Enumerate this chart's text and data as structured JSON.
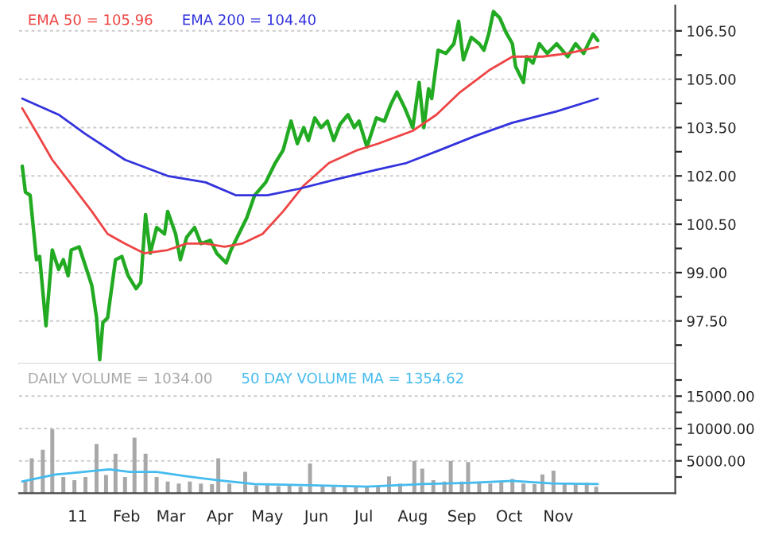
{
  "chart_data": [
    {
      "type": "line",
      "legend": "top left",
      "grid": "y",
      "tick_labels": "y",
      "xlim": [
        "2010-11-25",
        "2012-01-14"
      ],
      "ylim": [
        96.17,
        107.29
      ],
      "yticks": [
        {
          "value": 96.75,
          "label": null
        },
        {
          "value": 97.5,
          "label": "97.50"
        },
        {
          "value": 98.25,
          "label": null
        },
        {
          "value": 99.0,
          "label": "99.00"
        },
        {
          "value": 99.75,
          "label": null
        },
        {
          "value": 100.5,
          "label": "100.50"
        },
        {
          "value": 101.25,
          "label": null
        },
        {
          "value": 102.0,
          "label": "102.00"
        },
        {
          "value": 102.75,
          "label": null
        },
        {
          "value": 103.5,
          "label": "103.50"
        },
        {
          "value": 104.25,
          "label": null
        },
        {
          "value": 105.0,
          "label": "105.00"
        },
        {
          "value": 105.75,
          "label": null
        },
        {
          "value": 106.5,
          "label": "106.50"
        }
      ],
      "series": [
        {
          "color": "#22aa22",
          "x": [
            "2010-11-27",
            "2010-11-29",
            "2010-12-02",
            "2010-12-06",
            "2010-12-08",
            "2010-12-12",
            "2010-12-16",
            "2010-12-20",
            "2010-12-23",
            "2010-12-26",
            "2010-12-28",
            "2011-01-02",
            "2011-01-06",
            "2011-01-10",
            "2011-01-13",
            "2011-01-15",
            "2011-01-17",
            "2011-01-20",
            "2011-01-25",
            "2011-01-29",
            "2011-02-02",
            "2011-02-07",
            "2011-02-10",
            "2011-02-13",
            "2011-02-16",
            "2011-02-20",
            "2011-02-25",
            "2011-02-27",
            "2011-03-04",
            "2011-03-07",
            "2011-03-11",
            "2011-03-16",
            "2011-03-20",
            "2011-03-26",
            "2011-03-30",
            "2011-04-05",
            "2011-04-08",
            "2011-04-13",
            "2011-04-18",
            "2011-04-23",
            "2011-04-30",
            "2011-05-06",
            "2011-05-11",
            "2011-05-16",
            "2011-05-20",
            "2011-05-24",
            "2011-05-27",
            "2011-05-31",
            "2011-06-04",
            "2011-06-08",
            "2011-06-12",
            "2011-06-16",
            "2011-06-21",
            "2011-06-25",
            "2011-06-28",
            "2011-07-03",
            "2011-07-09",
            "2011-07-14",
            "2011-07-18",
            "2011-07-22",
            "2011-07-27",
            "2011-08-01",
            "2011-08-05",
            "2011-08-08",
            "2011-08-11",
            "2011-08-13",
            "2011-08-17",
            "2011-08-22",
            "2011-08-27",
            "2011-08-30",
            "2011-09-02",
            "2011-09-07",
            "2011-09-12",
            "2011-09-15",
            "2011-09-18",
            "2011-09-21",
            "2011-09-25",
            "2011-09-29",
            "2011-10-03",
            "2011-10-05",
            "2011-10-10",
            "2011-10-12",
            "2011-10-16",
            "2011-10-20",
            "2011-10-25",
            "2011-10-31",
            "2011-11-07",
            "2011-11-12",
            "2011-11-17",
            "2011-11-23",
            "2011-11-26"
          ],
          "values": [
            102.3,
            101.5,
            101.4,
            99.4,
            99.5,
            97.35,
            99.7,
            99.1,
            99.4,
            98.9,
            99.7,
            99.8,
            99.2,
            98.6,
            97.6,
            96.3,
            97.45,
            97.6,
            99.4,
            99.5,
            98.9,
            98.5,
            98.7,
            100.8,
            99.6,
            100.4,
            100.2,
            100.9,
            100.2,
            99.4,
            100.1,
            100.4,
            99.9,
            100.0,
            99.6,
            99.3,
            99.7,
            100.2,
            100.7,
            101.4,
            101.8,
            102.4,
            102.8,
            103.7,
            103.0,
            103.5,
            103.1,
            103.8,
            103.5,
            103.7,
            103.1,
            103.6,
            103.9,
            103.5,
            103.7,
            102.9,
            103.8,
            103.7,
            104.2,
            104.6,
            104.1,
            103.5,
            104.9,
            103.5,
            104.7,
            104.4,
            105.9,
            105.8,
            106.1,
            106.8,
            105.6,
            106.3,
            106.1,
            105.9,
            106.4,
            107.1,
            106.9,
            106.45,
            106.1,
            105.4,
            104.9,
            105.7,
            105.5,
            106.1,
            105.8,
            106.1,
            105.7,
            106.1,
            105.8,
            106.4,
            106.2
          ]
        },
        {
          "name": "EMA 50 = 105.96",
          "color": "#ee4444",
          "x": [
            "2010-11-27",
            "2010-12-06",
            "2010-12-16",
            "2010-12-27",
            "2011-01-10",
            "2011-01-20",
            "2011-01-31",
            "2011-02-12",
            "2011-02-27",
            "2011-03-11",
            "2011-03-23",
            "2011-04-04",
            "2011-04-15",
            "2011-04-28",
            "2011-05-11",
            "2011-05-24",
            "2011-06-09",
            "2011-06-27",
            "2011-07-10",
            "2011-08-01",
            "2011-08-16",
            "2011-08-31",
            "2011-09-19",
            "2011-10-03",
            "2011-10-22",
            "2011-11-07",
            "2011-11-26"
          ],
          "values": [
            104.1,
            103.35,
            102.5,
            101.8,
            100.9,
            100.2,
            99.9,
            99.6,
            99.7,
            99.9,
            99.9,
            99.8,
            99.9,
            100.2,
            100.9,
            101.7,
            102.4,
            102.8,
            103.0,
            103.4,
            103.9,
            104.6,
            105.3,
            105.7,
            105.7,
            105.8,
            106.0
          ]
        },
        {
          "name": "EMA 200 = 104.40",
          "color": "#3333dd",
          "x": [
            "2010-11-27",
            "2010-12-20",
            "2011-01-06",
            "2011-01-31",
            "2011-02-27",
            "2011-03-23",
            "2011-04-11",
            "2011-05-01",
            "2011-05-21",
            "2011-06-14",
            "2011-07-10",
            "2011-07-28",
            "2011-08-18",
            "2011-09-10",
            "2011-10-03",
            "2011-10-31",
            "2011-11-26"
          ],
          "values": [
            104.4,
            103.9,
            103.3,
            102.5,
            102.0,
            101.8,
            101.4,
            101.4,
            101.6,
            101.9,
            102.2,
            102.4,
            102.8,
            103.25,
            103.65,
            104.0,
            104.4
          ]
        }
      ]
    },
    {
      "type": "bar",
      "legend": "top left",
      "grid": "y",
      "xlim": [
        "2010-11-25",
        "2012-01-14"
      ],
      "xticks": [
        {
          "value": "2011-01-01",
          "label": "11"
        },
        {
          "value": "2011-02-01",
          "label": "Feb"
        },
        {
          "value": "2011-03-01",
          "label": "Mar"
        },
        {
          "value": "2011-04-01",
          "label": "Apr"
        },
        {
          "value": "2011-05-01",
          "label": "May"
        },
        {
          "value": "2011-06-01",
          "label": "Jun"
        },
        {
          "value": "2011-07-01",
          "label": "Jul"
        },
        {
          "value": "2011-08-01",
          "label": "Aug"
        },
        {
          "value": "2011-09-01",
          "label": "Sep"
        },
        {
          "value": "2011-10-01",
          "label": "Oct"
        },
        {
          "value": "2011-11-01",
          "label": "Nov"
        }
      ],
      "ylim": [
        0,
        20000
      ],
      "yticks": [
        {
          "value": 2500,
          "label": null
        },
        {
          "value": 5000,
          "label": "5000.00"
        },
        {
          "value": 7500,
          "label": null
        },
        {
          "value": 10000,
          "label": "10000.00"
        },
        {
          "value": 12500,
          "label": null
        },
        {
          "value": 15000,
          "label": "15000.00"
        },
        {
          "value": 17500,
          "label": null
        }
      ],
      "series": [
        {
          "name": "DAILY VOLUME = 1034.00",
          "color": "#a8a8a8",
          "x": [
            "2010-11-29",
            "2010-12-03",
            "2010-12-10",
            "2010-12-16",
            "2010-12-23",
            "2010-12-30",
            "2011-01-06",
            "2011-01-13",
            "2011-01-19",
            "2011-01-25",
            "2011-01-31",
            "2011-02-06",
            "2011-02-13",
            "2011-02-20",
            "2011-02-27",
            "2011-03-06",
            "2011-03-13",
            "2011-03-20",
            "2011-03-27",
            "2011-03-31",
            "2011-04-07",
            "2011-04-17",
            "2011-04-24",
            "2011-05-01",
            "2011-05-08",
            "2011-05-15",
            "2011-05-22",
            "2011-05-28",
            "2011-06-05",
            "2011-06-12",
            "2011-06-19",
            "2011-06-26",
            "2011-07-03",
            "2011-07-10",
            "2011-07-17",
            "2011-07-24",
            "2011-08-02",
            "2011-08-07",
            "2011-08-14",
            "2011-08-21",
            "2011-08-25",
            "2011-09-01",
            "2011-09-05",
            "2011-09-12",
            "2011-09-19",
            "2011-09-26",
            "2011-10-03",
            "2011-10-10",
            "2011-10-17",
            "2011-10-22",
            "2011-10-29",
            "2011-11-05",
            "2011-11-12",
            "2011-11-19",
            "2011-11-25"
          ],
          "values": [
            1800,
            5400,
            6700,
            9900,
            2500,
            2000,
            2500,
            7600,
            2800,
            6100,
            2500,
            8600,
            6100,
            2500,
            1800,
            1500,
            1800,
            1500,
            1400,
            5400,
            1500,
            3300,
            1200,
            1300,
            1100,
            1200,
            1000,
            4600,
            1200,
            1000,
            1100,
            900,
            1000,
            1200,
            2600,
            1500,
            5000,
            3800,
            2000,
            1800,
            5000,
            1800,
            4800,
            1600,
            1500,
            1800,
            2200,
            1500,
            1400,
            2900,
            3500,
            1500,
            1400,
            1600,
            1000
          ]
        },
        {
          "name": "50 DAY VOLUME MA = 1354.62",
          "type": "line",
          "color": "#44bbee",
          "x": [
            "2010-11-27",
            "2010-12-18",
            "2010-12-28",
            "2011-01-21",
            "2011-02-03",
            "2011-02-20",
            "2011-03-11",
            "2011-03-31",
            "2011-04-23",
            "2011-06-02",
            "2011-07-03",
            "2011-08-07",
            "2011-09-06",
            "2011-10-03",
            "2011-10-28",
            "2011-11-26"
          ],
          "values": [
            1800,
            2900,
            3100,
            3700,
            3300,
            3300,
            2600,
            2000,
            1400,
            1200,
            1000,
            1400,
            1600,
            1900,
            1500,
            1400
          ]
        }
      ]
    }
  ]
}
